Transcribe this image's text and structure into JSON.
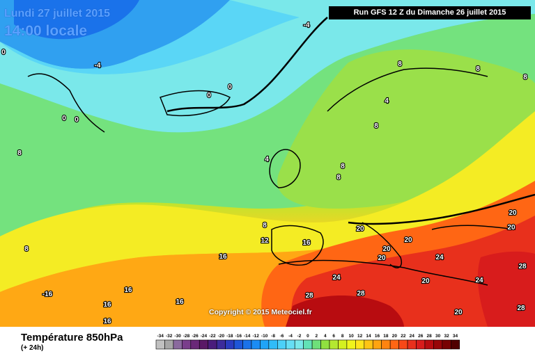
{
  "header": {
    "date": "Lundi 27 juillet 2015",
    "time": "14:00 locale",
    "run": "Run GFS 12 Z du Dimanche 26 juillet 2015"
  },
  "footer": {
    "variable": "Température 850hPa",
    "offset": "(+ 24h)",
    "copyright": "Copyright © 2015 Meteociel.fr"
  },
  "scale": {
    "ticks": [
      "-34",
      "-32",
      "-30",
      "-28",
      "-26",
      "-24",
      "-22",
      "-20",
      "-18",
      "-16",
      "-14",
      "-12",
      "-10",
      "-8",
      "-6",
      "-4",
      "-2",
      "0",
      "2",
      "4",
      "6",
      "8",
      "10",
      "12",
      "14",
      "16",
      "18",
      "20",
      "22",
      "24",
      "26",
      "28",
      "30",
      "32",
      "34"
    ],
    "colors": [
      "#c0c0c0",
      "#a6a6a6",
      "#8a6a9e",
      "#7a3e8c",
      "#6a2878",
      "#5a1866",
      "#4a1c7c",
      "#3c2c9c",
      "#2a3cc0",
      "#1e56d8",
      "#1a72ea",
      "#1a8cf4",
      "#20a4f8",
      "#30bcf8",
      "#4cd0f8",
      "#66def4",
      "#7ae8ea",
      "#62e2b6",
      "#6ee07a",
      "#90e040",
      "#b4e830",
      "#d4f020",
      "#f0f41c",
      "#ffe41c",
      "#ffc414",
      "#ffa410",
      "#ff8410",
      "#ff6614",
      "#f84818",
      "#e8301c",
      "#d81c1c",
      "#b80c10",
      "#980608",
      "#780202",
      "#500000"
    ]
  },
  "isotherm_labels": [
    "-4",
    "-4",
    "0",
    "0",
    "0",
    "0",
    "0",
    "4",
    "4",
    "8",
    "8",
    "8",
    "8",
    "8",
    "8",
    "8",
    "8",
    "8",
    "12",
    "16",
    "16",
    "16",
    "16",
    "16",
    "16",
    "20",
    "20",
    "20",
    "20",
    "20",
    "20",
    "20",
    "20",
    "24",
    "24",
    "24",
    "28",
    "28",
    "28",
    "28",
    "-16"
  ]
}
